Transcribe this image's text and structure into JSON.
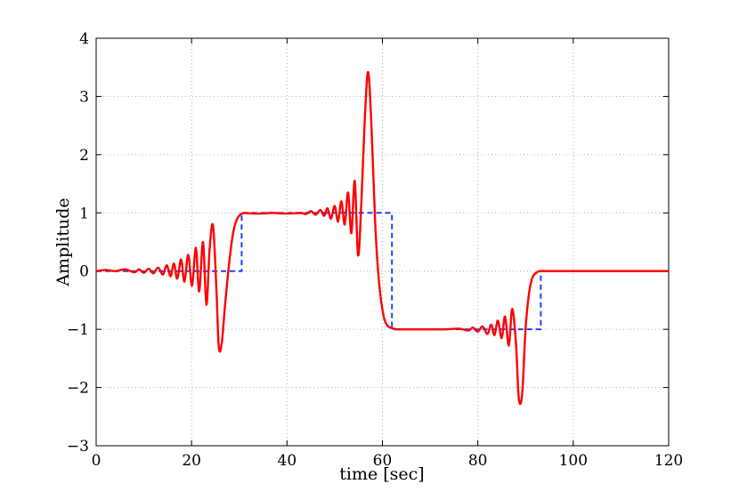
{
  "chart_data": {
    "type": "line",
    "title": "",
    "xlabel": "time [sec]",
    "ylabel": "Amplitude",
    "xlim": [
      0,
      120
    ],
    "ylim": [
      -3,
      4
    ],
    "xticks": [
      0,
      20,
      40,
      60,
      80,
      100,
      120
    ],
    "yticks": [
      -3,
      -2,
      -1,
      0,
      1,
      2,
      3,
      4
    ],
    "grid": true,
    "legend": "none",
    "series": [
      {
        "style": "dashed",
        "color": "#2040ff",
        "x": [
          0,
          30.5,
          30.5,
          62,
          62,
          93.2,
          93.2,
          120
        ],
        "y": [
          0,
          0,
          1,
          1,
          -1,
          -1,
          0,
          0
        ]
      },
      {
        "style": "solid",
        "color": "#ff0000",
        "x": [
          0,
          2,
          4,
          6,
          8,
          9,
          10,
          11,
          12,
          13,
          14,
          14.8,
          15.6,
          16.3,
          17,
          17.8,
          18.5,
          19.3,
          20.1,
          20.9,
          21.6,
          22.4,
          23.1,
          23.8,
          24.5,
          25.2,
          25.7,
          26.3,
          27,
          27.7,
          28.5,
          29.3,
          30.2,
          31.2,
          32.5,
          35,
          37,
          39,
          41,
          43,
          44,
          45,
          46,
          47,
          47.8,
          48.5,
          49.2,
          50,
          50.7,
          51.4,
          52.1,
          52.8,
          53.5,
          54.2,
          54.9,
          55.6,
          56.3,
          57,
          57.7,
          58.5,
          59.3,
          60.2,
          61,
          62,
          63,
          64.5,
          66,
          70,
          73,
          76,
          78,
          79,
          80,
          81,
          82,
          82.8,
          83.5,
          84.2,
          85,
          85.7,
          86.5,
          87.2,
          88,
          88.6,
          89.3,
          90,
          90.7,
          91.4,
          92.2,
          93,
          94,
          95.5,
          97,
          100,
          110,
          120
        ],
        "y": [
          0,
          0.02,
          0.0,
          0.03,
          -0.02,
          0.03,
          -0.03,
          0.04,
          -0.04,
          0.06,
          -0.06,
          0.1,
          -0.09,
          0.13,
          -0.13,
          0.2,
          -0.18,
          0.28,
          -0.25,
          0.4,
          -0.35,
          0.5,
          -0.58,
          0.4,
          0.78,
          -0.3,
          -1.3,
          -1.25,
          -0.6,
          0.0,
          0.55,
          0.85,
          0.97,
          1.0,
          0.99,
          0.99,
          1.0,
          0.99,
          0.99,
          1.0,
          0.98,
          1.03,
          0.97,
          1.05,
          0.95,
          1.08,
          0.9,
          1.12,
          0.85,
          1.2,
          0.8,
          1.35,
          0.65,
          1.55,
          0.27,
          1.2,
          2.6,
          3.42,
          2.5,
          0.8,
          -0.2,
          -0.75,
          -0.93,
          -0.98,
          -1.0,
          -1.0,
          -1.0,
          -1.0,
          -1.0,
          -0.99,
          -1.02,
          -0.97,
          -1.04,
          -0.95,
          -1.08,
          -0.92,
          -1.1,
          -0.85,
          -1.15,
          -0.78,
          -1.28,
          -0.65,
          -1.25,
          -2.2,
          -2.1,
          -1.0,
          -0.4,
          -0.12,
          -0.03,
          0.0,
          0.0,
          0.0,
          0.0,
          0.0,
          0.0,
          0.0
        ]
      }
    ]
  }
}
